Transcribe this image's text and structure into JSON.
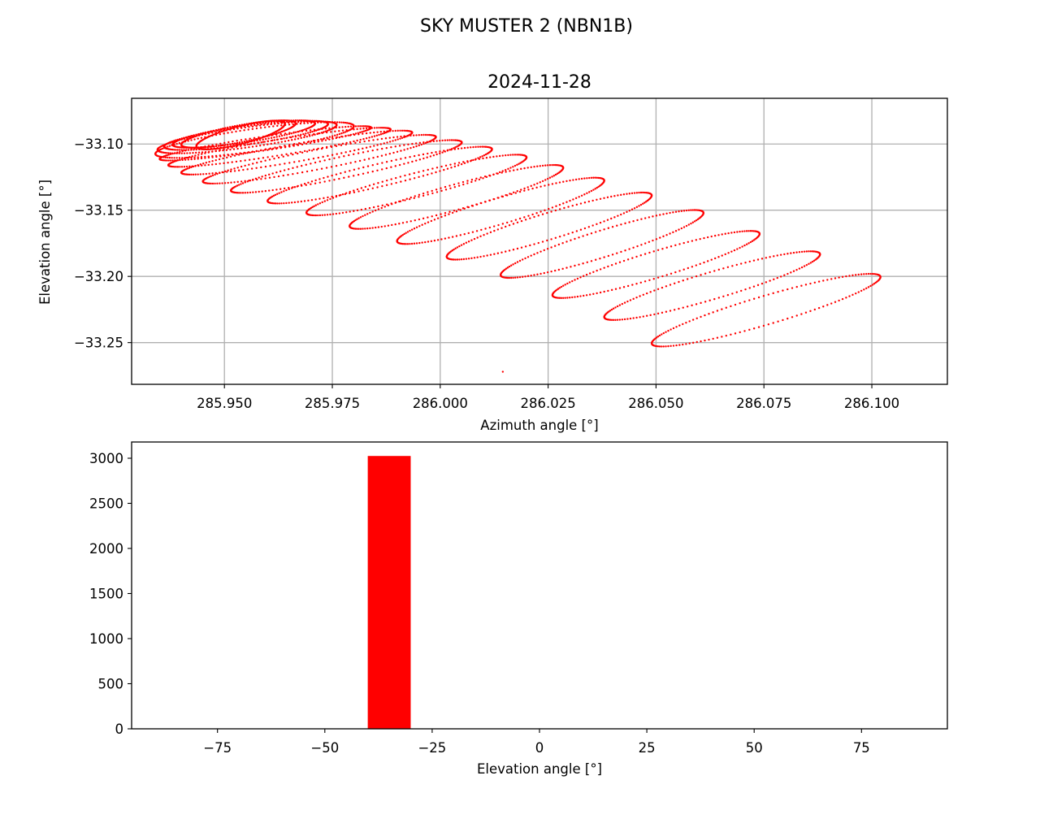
{
  "figure": {
    "suptitle": "SKY MUSTER 2 (NBN1B)"
  },
  "chart_data": [
    {
      "type": "scatter",
      "title": "2024-11-28",
      "xlabel": "Azimuth angle [°]",
      "ylabel": "Elevation angle [°]",
      "xlim": [
        285.9285,
        286.1175
      ],
      "ylim": [
        -33.2815,
        -33.0655
      ],
      "xticks": [
        285.95,
        285.975,
        286.0,
        286.025,
        286.05,
        286.075,
        286.1
      ],
      "xticklabels": [
        "285.950",
        "285.975",
        "286.000",
        "286.025",
        "286.050",
        "286.075",
        "286.100"
      ],
      "yticks": [
        -33.1,
        -33.15,
        -33.2,
        -33.25
      ],
      "yticklabels": [
        "−33.10",
        "−33.15",
        "−33.20",
        "−33.25"
      ],
      "grid": true,
      "color": "#ff0000",
      "marker": "dot",
      "trajectory": {
        "description_of_shape": "spiralling daily loops drifting toward lower elevation and wider azimuth span",
        "loops": [
          {
            "az_min": 285.9435,
            "az_max": 285.964,
            "el_top": -33.078,
            "el_bottom": -33.1085
          },
          {
            "az_min": 285.94,
            "az_max": 285.9665,
            "el_top": -33.078,
            "el_bottom": -33.107
          },
          {
            "az_min": 285.938,
            "az_max": 285.971,
            "el_top": -33.078,
            "el_bottom": -33.107
          },
          {
            "az_min": 285.936,
            "az_max": 285.974,
            "el_top": -33.078,
            "el_bottom": -33.109
          },
          {
            "az_min": 285.9345,
            "az_max": 285.976,
            "el_top": -33.078,
            "el_bottom": -33.112
          },
          {
            "az_min": 285.934,
            "az_max": 285.98,
            "el_top": -33.078,
            "el_bottom": -33.116
          },
          {
            "az_min": 285.935,
            "az_max": 285.984,
            "el_top": -33.078,
            "el_bottom": -33.121
          },
          {
            "az_min": 285.937,
            "az_max": 285.9885,
            "el_top": -33.078,
            "el_bottom": -33.127
          },
          {
            "az_min": 285.94,
            "az_max": 285.9935,
            "el_top": -33.079,
            "el_bottom": -33.134
          },
          {
            "az_min": 285.945,
            "az_max": 285.999,
            "el_top": -33.081,
            "el_bottom": -33.142
          },
          {
            "az_min": 285.9515,
            "az_max": 286.005,
            "el_top": -33.084,
            "el_bottom": -33.15
          },
          {
            "az_min": 285.96,
            "az_max": 286.012,
            "el_top": -33.088,
            "el_bottom": -33.159
          },
          {
            "az_min": 285.969,
            "az_max": 286.02,
            "el_top": -33.093,
            "el_bottom": -33.169
          },
          {
            "az_min": 285.979,
            "az_max": 286.0285,
            "el_top": -33.1,
            "el_bottom": -33.18
          },
          {
            "az_min": 285.99,
            "az_max": 286.038,
            "el_top": -33.109,
            "el_bottom": -33.192
          },
          {
            "az_min": 286.0015,
            "az_max": 286.049,
            "el_top": -33.12,
            "el_bottom": -33.204
          },
          {
            "az_min": 286.014,
            "az_max": 286.061,
            "el_top": -33.133,
            "el_bottom": -33.218
          },
          {
            "az_min": 286.026,
            "az_max": 286.074,
            "el_top": -33.149,
            "el_bottom": -33.233
          },
          {
            "az_min": 286.038,
            "az_max": 286.088,
            "el_top": -33.164,
            "el_bottom": -33.25
          },
          {
            "az_min": 286.049,
            "az_max": 286.102,
            "el_top": -33.18,
            "el_bottom": -33.271
          }
        ],
        "end_point": {
          "az": 286.0145,
          "el": -33.272
        }
      }
    },
    {
      "type": "bar",
      "xlabel": "Elevation angle [°]",
      "ylabel": "",
      "xlim": [
        -95,
        95
      ],
      "ylim": [
        0,
        3180
      ],
      "xticks": [
        -75,
        -50,
        -25,
        0,
        25,
        50,
        75
      ],
      "xticklabels": [
        "−75",
        "−50",
        "−25",
        "0",
        "25",
        "50",
        "75"
      ],
      "yticks": [
        0,
        500,
        1000,
        1500,
        2000,
        2500,
        3000
      ],
      "yticklabels": [
        "0",
        "500",
        "1000",
        "1500",
        "2000",
        "2500",
        "3000"
      ],
      "grid": false,
      "color": "#ff0000",
      "bins": [
        {
          "x0": -40,
          "x1": -30,
          "count": 3025
        }
      ]
    }
  ]
}
